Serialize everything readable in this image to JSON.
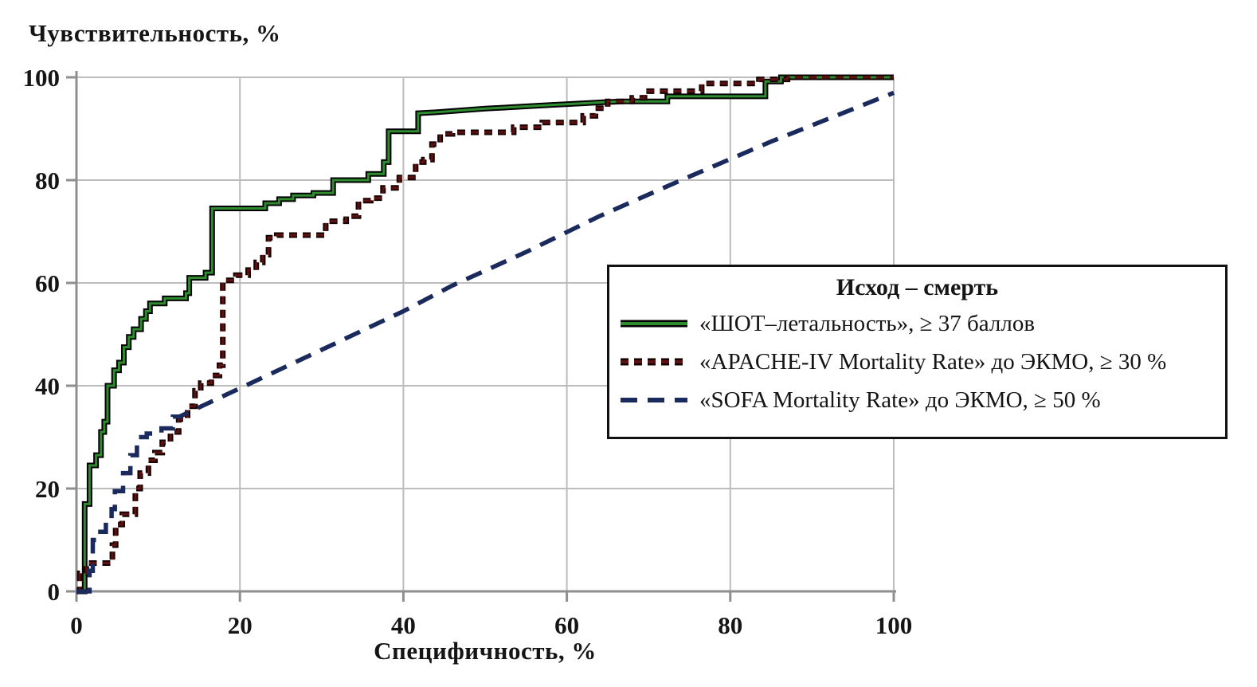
{
  "figure": {
    "y_axis_title": "Чувствительность, %",
    "x_axis_title": "Специфичность, %"
  },
  "chart_data": {
    "type": "line",
    "subtype": "roc-curves-stepped",
    "title": "",
    "xlabel": "Специфичность, %",
    "ylabel": "Чувствительность, %",
    "xlim": [
      0,
      100
    ],
    "ylim": [
      0,
      100
    ],
    "xticks": [
      0,
      20,
      40,
      60,
      80,
      100
    ],
    "yticks": [
      0,
      20,
      40,
      60,
      80,
      100
    ],
    "grid": true,
    "grid_color": "#bcbcbc",
    "axis_color": "#8f8f8f",
    "text_color": "#151515",
    "legend": {
      "title": "Исход – смерть",
      "position": "right-middle",
      "border_color": "#111111"
    },
    "series": [
      {
        "key": "shot",
        "name": "«ШОТ–летальность», ≥ 37 баллов",
        "color": "#2e8b2e",
        "outline": "#000000",
        "dash": null,
        "width": 3,
        "points": [
          [
            0,
            0
          ],
          [
            1,
            0
          ],
          [
            1,
            17
          ],
          [
            1.6,
            17
          ],
          [
            1.6,
            24.5
          ],
          [
            2.4,
            24.5
          ],
          [
            2.4,
            26.5
          ],
          [
            3,
            26.5
          ],
          [
            3,
            31
          ],
          [
            3.4,
            31
          ],
          [
            3.4,
            33
          ],
          [
            3.8,
            33
          ],
          [
            3.8,
            40
          ],
          [
            4.6,
            40
          ],
          [
            4.6,
            43
          ],
          [
            5.2,
            43
          ],
          [
            5.2,
            44.5
          ],
          [
            5.8,
            44.5
          ],
          [
            5.8,
            47.5
          ],
          [
            6.4,
            47.5
          ],
          [
            6.4,
            49.5
          ],
          [
            7,
            49.5
          ],
          [
            7,
            51
          ],
          [
            7.9,
            51
          ],
          [
            7.9,
            53
          ],
          [
            8.5,
            53
          ],
          [
            8.5,
            54.5
          ],
          [
            9,
            54.5
          ],
          [
            9,
            56
          ],
          [
            10.8,
            56
          ],
          [
            10.8,
            57
          ],
          [
            13.4,
            57
          ],
          [
            13.4,
            58
          ],
          [
            13.8,
            58
          ],
          [
            13.8,
            61
          ],
          [
            15.8,
            61
          ],
          [
            15.8,
            62
          ],
          [
            16.6,
            62
          ],
          [
            16.6,
            74.5
          ],
          [
            23.1,
            74.5
          ],
          [
            23.1,
            75.5
          ],
          [
            24.8,
            75.5
          ],
          [
            24.8,
            76.3
          ],
          [
            26.5,
            76.3
          ],
          [
            26.5,
            77
          ],
          [
            29,
            77
          ],
          [
            29,
            77.5
          ],
          [
            31.4,
            77.5
          ],
          [
            31.4,
            80
          ],
          [
            35.7,
            80
          ],
          [
            35.7,
            81.2
          ],
          [
            37.6,
            81.2
          ],
          [
            37.6,
            83.5
          ],
          [
            38.2,
            83.5
          ],
          [
            38.2,
            89.5
          ],
          [
            41.8,
            89.5
          ],
          [
            41.8,
            93
          ],
          [
            44,
            93.2
          ],
          [
            50,
            93.9
          ],
          [
            58,
            94.6
          ],
          [
            65,
            95.2
          ],
          [
            67,
            95.3
          ],
          [
            72.3,
            95.3
          ],
          [
            72.3,
            96.3
          ],
          [
            84.3,
            96.3
          ],
          [
            84.3,
            99.2
          ],
          [
            86.2,
            99.2
          ],
          [
            86.2,
            100
          ],
          [
            100,
            100
          ]
        ]
      },
      {
        "key": "apache",
        "name": "«APACHE-IV Mortality Rate» до ЭКМО, ≥ 30 %",
        "color": "#5d1111",
        "outline": "#170202",
        "dash": [
          10,
          7
        ],
        "width": 3,
        "points": [
          [
            0,
            0
          ],
          [
            0.4,
            0
          ],
          [
            0.4,
            3.5
          ],
          [
            1.2,
            3.5
          ],
          [
            1.2,
            5.5
          ],
          [
            4.4,
            5.5
          ],
          [
            4.4,
            9
          ],
          [
            4.8,
            9
          ],
          [
            4.8,
            13
          ],
          [
            5.6,
            13
          ],
          [
            5.6,
            15
          ],
          [
            7.2,
            15
          ],
          [
            7.2,
            20
          ],
          [
            7.8,
            20
          ],
          [
            7.8,
            23
          ],
          [
            8.8,
            23
          ],
          [
            8.8,
            25.5
          ],
          [
            9.6,
            25.5
          ],
          [
            9.6,
            27
          ],
          [
            10.5,
            27
          ],
          [
            10.5,
            29
          ],
          [
            11.5,
            29
          ],
          [
            11.5,
            31
          ],
          [
            12.5,
            31
          ],
          [
            12.5,
            33.5
          ],
          [
            13.6,
            33.5
          ],
          [
            13.6,
            36
          ],
          [
            14.5,
            36
          ],
          [
            14.5,
            39
          ],
          [
            15.2,
            39
          ],
          [
            15.2,
            40.5
          ],
          [
            16.5,
            40.5
          ],
          [
            16.5,
            42
          ],
          [
            17.5,
            42
          ],
          [
            17.5,
            44
          ],
          [
            17.9,
            44
          ],
          [
            17.9,
            60.5
          ],
          [
            19.5,
            60.5
          ],
          [
            19.5,
            61.5
          ],
          [
            21,
            61.5
          ],
          [
            21,
            62.5
          ],
          [
            22,
            62.5
          ],
          [
            22,
            64
          ],
          [
            22.8,
            64
          ],
          [
            22.8,
            65.5
          ],
          [
            23.5,
            65.5
          ],
          [
            23.5,
            68.8
          ],
          [
            24.5,
            68.8
          ],
          [
            24.5,
            69.3
          ],
          [
            30.5,
            69.3
          ],
          [
            30.5,
            72
          ],
          [
            33,
            72
          ],
          [
            33,
            73
          ],
          [
            34.5,
            73
          ],
          [
            34.5,
            76
          ],
          [
            36,
            76
          ],
          [
            36,
            76.5
          ],
          [
            37.5,
            76.5
          ],
          [
            37.5,
            78.5
          ],
          [
            39.5,
            78.5
          ],
          [
            39.5,
            80.5
          ],
          [
            41.5,
            80.5
          ],
          [
            41.5,
            83.5
          ],
          [
            42.5,
            83.5
          ],
          [
            42.5,
            84
          ],
          [
            43.5,
            84
          ],
          [
            43.5,
            87
          ],
          [
            44.5,
            87
          ],
          [
            44.5,
            89
          ],
          [
            46,
            89
          ],
          [
            46,
            89.3
          ],
          [
            53.5,
            89.3
          ],
          [
            53.5,
            90.3
          ],
          [
            57,
            90.3
          ],
          [
            57,
            91.2
          ],
          [
            62,
            91.2
          ],
          [
            62,
            92.5
          ],
          [
            63.5,
            92.5
          ],
          [
            63.5,
            94
          ],
          [
            65,
            94
          ],
          [
            65,
            95.3
          ],
          [
            68,
            95.3
          ],
          [
            68,
            96
          ],
          [
            69.5,
            96
          ],
          [
            69.5,
            97.3
          ],
          [
            76.5,
            97.3
          ],
          [
            76.5,
            98.8
          ],
          [
            83.5,
            98.8
          ],
          [
            83.5,
            99.6
          ],
          [
            87,
            99.6
          ],
          [
            87,
            100
          ],
          [
            100,
            100
          ]
        ]
      },
      {
        "key": "sofa",
        "name": "«SOFA Mortality Rate» до ЭКМО, ≥ 50 %",
        "color": "#1b2a5c",
        "outline": null,
        "dash": [
          21,
          13
        ],
        "width": 5.5,
        "points": [
          [
            0,
            0
          ],
          [
            1.6,
            0
          ],
          [
            1.6,
            4
          ],
          [
            2,
            4
          ],
          [
            2,
            10
          ],
          [
            2.4,
            10
          ],
          [
            2.4,
            11.6
          ],
          [
            3.6,
            11.6
          ],
          [
            3.6,
            14
          ],
          [
            4.3,
            14
          ],
          [
            4.3,
            16
          ],
          [
            4.7,
            16
          ],
          [
            4.7,
            19.5
          ],
          [
            5.7,
            19.5
          ],
          [
            5.7,
            23
          ],
          [
            6.6,
            23
          ],
          [
            6.6,
            26.5
          ],
          [
            7.4,
            26.5
          ],
          [
            7.4,
            30
          ],
          [
            8.6,
            30
          ],
          [
            8.6,
            30.7
          ],
          [
            10.4,
            30.7
          ],
          [
            10.4,
            31.7
          ],
          [
            11.8,
            31.7
          ],
          [
            11.8,
            34
          ],
          [
            12.6,
            34
          ],
          [
            20,
            39.5
          ],
          [
            30,
            47
          ],
          [
            40,
            54.5
          ],
          [
            46,
            59.5
          ],
          [
            55,
            66
          ],
          [
            64,
            73
          ],
          [
            74,
            80
          ],
          [
            85,
            87.5
          ],
          [
            100,
            97
          ]
        ]
      }
    ]
  }
}
